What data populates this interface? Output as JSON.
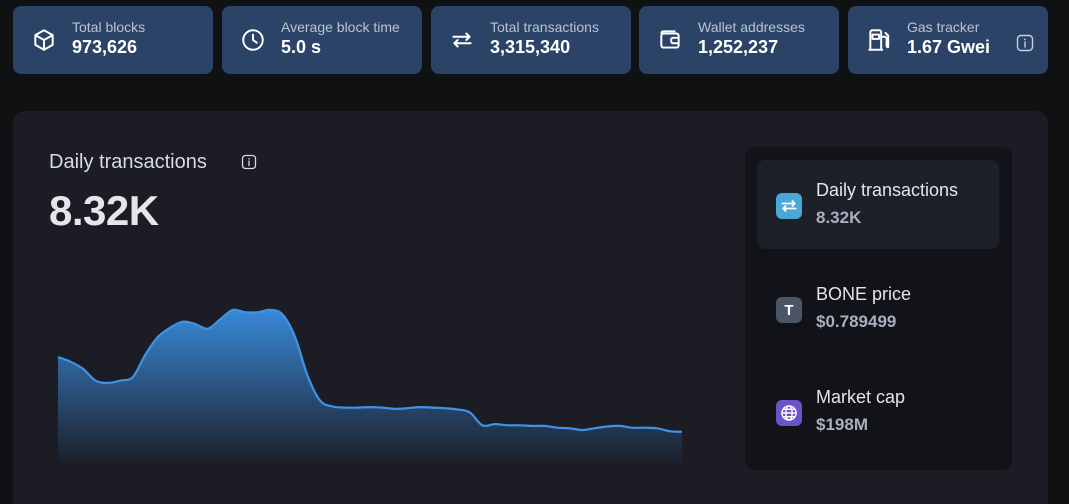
{
  "stats": [
    {
      "label": "Total blocks",
      "value": "973,626",
      "icon": "cube-icon"
    },
    {
      "label": "Average block time",
      "value": "5.0 s",
      "icon": "clock-icon"
    },
    {
      "label": "Total transactions",
      "value": "3,315,340",
      "icon": "arrows-swap-icon"
    },
    {
      "label": "Wallet addresses",
      "value": "1,252,237",
      "icon": "wallet-icon"
    },
    {
      "label": "Gas tracker",
      "value": "1.67 Gwei",
      "icon": "gas-pump-icon"
    }
  ],
  "chart": {
    "title": "Daily transactions",
    "value": "8.32K"
  },
  "chart_data": {
    "type": "area",
    "title": "Daily transactions",
    "xlabel": "",
    "ylabel": "",
    "grid": false,
    "values": [
      9000,
      8600,
      8000,
      7000,
      6800,
      7000,
      7300,
      9200,
      10700,
      11500,
      12000,
      11800,
      11400,
      12200,
      13000,
      12800,
      12800,
      13000,
      12600,
      10700,
      7400,
      5300,
      4800,
      4700,
      4700,
      4750,
      4700,
      4600,
      4650,
      4750,
      4700,
      4650,
      4550,
      4300,
      3200,
      3300,
      3200,
      3200,
      3150,
      3150,
      3000,
      2950,
      2800,
      2950,
      3100,
      3150,
      3000,
      3000,
      2950,
      2700,
      2650
    ],
    "ylim": [
      0,
      18000
    ],
    "color": "#3a8ee0"
  },
  "metrics": [
    {
      "label": "Daily transactions",
      "value": "8.32K",
      "icon": "arrows-swap-icon",
      "color": "#4aa8d8",
      "active": true
    },
    {
      "label": "BONE price",
      "value": "$0.789499",
      "icon": "token-icon",
      "letter": "T",
      "color": "#4a5566",
      "active": false
    },
    {
      "label": "Market cap",
      "value": "$198M",
      "icon": "globe-icon",
      "color": "#6a52c8",
      "active": false
    }
  ]
}
